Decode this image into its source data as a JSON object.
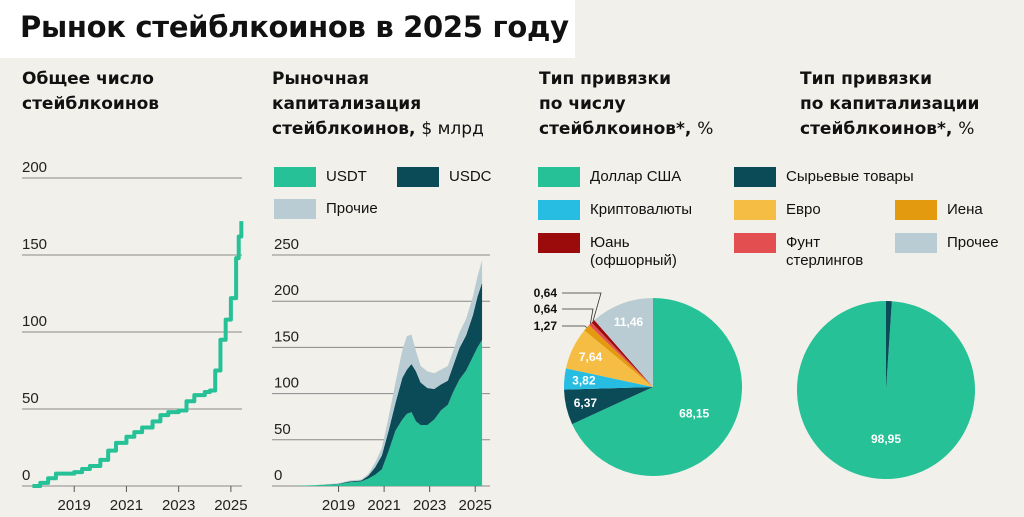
{
  "title": "Рынок стейблкоинов в 2025 году",
  "colors": {
    "usdt": "#26c197",
    "usdc": "#0b4a57",
    "other": "#b9ccd3",
    "usd": "#26c197",
    "commodities": "#0b4a57",
    "crypto": "#27bde3",
    "euro": "#f6bd45",
    "yen": "#e39a0f",
    "yuan": "#9b0b0b",
    "pound": "#e34e50",
    "other_peg": "#b9ccd3",
    "panel_bg": "#f1f0ea"
  },
  "panels": {
    "count": {
      "title_line1": "Общее число",
      "title_line2": "стейблкоинов"
    },
    "cap": {
      "title_line1": "Рыночная",
      "title_line2": "капитализация",
      "title_line3": "стейблкоинов,",
      "unit": "$ млрд"
    },
    "peg_count": {
      "title_line1": "Тип привязки",
      "title_line2": "по числу",
      "title_line3": "стейблкоинов*,",
      "unit": "%"
    },
    "peg_cap": {
      "title_line1": "Тип привязки",
      "title_line2": "по капитализации",
      "title_line3": "стейблкоинов*,",
      "unit": "%"
    }
  },
  "legend_cap": {
    "usdt": "USDT",
    "usdc": "USDC",
    "other": "Прочие"
  },
  "legend_peg": {
    "usd": "Доллар США",
    "commodities": "Сырьевые товары",
    "crypto": "Криптовалюты",
    "euro": "Евро",
    "yen": "Иена",
    "yuan_l1": "Юань",
    "yuan_l2": "(офшорный)",
    "pound_l1": "Фунт",
    "pound_l2": "стерлингов",
    "other": "Прочее"
  },
  "chart_data": [
    {
      "type": "line",
      "title": "Общее число стейблкоинов",
      "x": [
        2017.4,
        2017.7,
        2018.0,
        2018.3,
        2018.6,
        2019.0,
        2019.3,
        2019.6,
        2020.0,
        2020.3,
        2020.6,
        2021.0,
        2021.3,
        2021.6,
        2022.0,
        2022.3,
        2022.6,
        2023.0,
        2023.3,
        2023.6,
        2024.0,
        2024.2,
        2024.4,
        2024.6,
        2024.8,
        2025.0,
        2025.2,
        2025.3,
        2025.4
      ],
      "y": [
        0,
        2,
        5,
        8,
        8,
        9,
        11,
        13,
        17,
        23,
        28,
        32,
        35,
        38,
        42,
        46,
        48,
        49,
        55,
        59,
        61,
        62,
        75,
        95,
        108,
        122,
        148,
        162,
        172
      ],
      "xticks": [
        "2019",
        "2021",
        "2023",
        "2025"
      ],
      "xtick_values": [
        2019,
        2021,
        2023,
        2025
      ],
      "yticks": [
        "0",
        "50",
        "100",
        "150",
        "200"
      ],
      "ytick_values": [
        0,
        50,
        100,
        150,
        200
      ],
      "xlim": [
        2017.0,
        2026.0
      ],
      "ylim": [
        0,
        200
      ]
    },
    {
      "type": "area",
      "title": "Рыночная капитализация стейблкоинов, $ млрд",
      "x": [
        2017.0,
        2018.0,
        2019.0,
        2019.5,
        2020.0,
        2020.3,
        2020.6,
        2020.9,
        2021.2,
        2021.5,
        2021.8,
        2022.0,
        2022.2,
        2022.4,
        2022.6,
        2022.9,
        2023.2,
        2023.5,
        2023.8,
        2024.0,
        2024.3,
        2024.6,
        2024.9,
        2025.1,
        2025.3
      ],
      "series": [
        {
          "name": "USDT",
          "values": [
            0,
            1,
            2,
            4,
            5,
            8,
            12,
            18,
            38,
            60,
            72,
            78,
            80,
            70,
            66,
            66,
            72,
            82,
            88,
            100,
            115,
            125,
            140,
            150,
            158
          ]
        },
        {
          "name": "USDC",
          "values": [
            0,
            0,
            0.5,
            1,
            1,
            3,
            8,
            15,
            22,
            30,
            45,
            48,
            52,
            54,
            46,
            40,
            33,
            28,
            26,
            28,
            34,
            38,
            45,
            55,
            62
          ]
        },
        {
          "name": "Прочие",
          "values": [
            0,
            0,
            0.5,
            1,
            1,
            2,
            5,
            8,
            15,
            22,
            30,
            36,
            32,
            22,
            18,
            18,
            17,
            16,
            16,
            16,
            17,
            18,
            20,
            22,
            24
          ]
        }
      ],
      "xticks": [
        "2019",
        "2021",
        "2023",
        "2025"
      ],
      "xtick_values": [
        2019,
        2021,
        2023,
        2025
      ],
      "yticks": [
        "0",
        "50",
        "100",
        "150",
        "200",
        "250"
      ],
      "ytick_values": [
        0,
        50,
        100,
        150,
        200,
        250
      ],
      "xlim": [
        2017.0,
        2026.0
      ],
      "ylim": [
        0,
        250
      ]
    },
    {
      "type": "pie",
      "title": "Тип привязки по числу стейблкоинов*, %",
      "slices": [
        {
          "name": "Доллар США",
          "value": 68.15,
          "label": "68,15",
          "color_key": "usd",
          "label_style": "light"
        },
        {
          "name": "Сырьевые товары",
          "value": 6.37,
          "label": "6,37",
          "color_key": "commodities",
          "label_style": "light"
        },
        {
          "name": "Криптовалюты",
          "value": 3.82,
          "label": "3,82",
          "color_key": "crypto",
          "label_style": "light"
        },
        {
          "name": "Евро",
          "value": 7.64,
          "label": "7,64",
          "color_key": "euro",
          "label_style": "light"
        },
        {
          "name": "Иена",
          "value": 1.27,
          "label": "1,27",
          "color_key": "yen",
          "label_style": "callout"
        },
        {
          "name": "Фунт стерлингов",
          "value": 0.64,
          "label": "0,64",
          "color_key": "pound",
          "label_style": "callout"
        },
        {
          "name": "Юань (офшорный)",
          "value": 0.64,
          "label": "0,64",
          "color_key": "yuan",
          "label_style": "callout"
        },
        {
          "name": "Прочее",
          "value": 11.46,
          "label": "11,46",
          "color_key": "other_peg",
          "label_style": "light"
        }
      ]
    },
    {
      "type": "pie",
      "title": "Тип привязки по капитализации стейблкоинов*, %",
      "slices": [
        {
          "name": "Доллар США",
          "value": 98.95,
          "label": "98,95",
          "color_key": "usd",
          "label_style": "light"
        },
        {
          "name": "Сырьевые товары",
          "value": 1.05,
          "label": "",
          "color_key": "commodities",
          "label_style": "none"
        }
      ]
    }
  ]
}
